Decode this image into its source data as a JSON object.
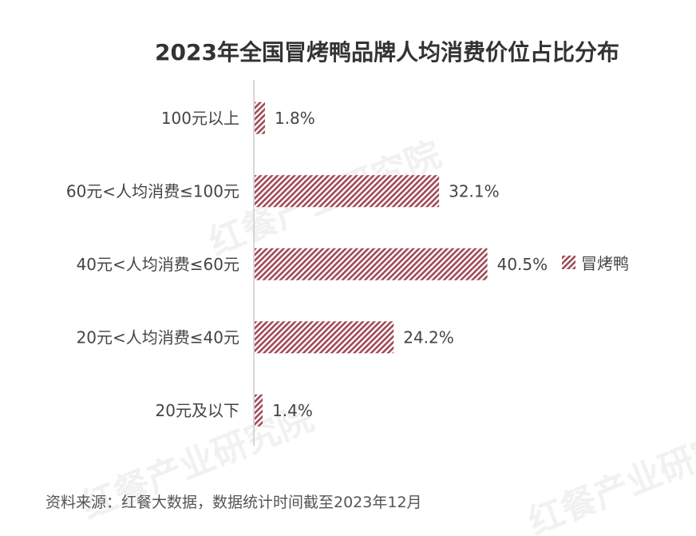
{
  "chart_data": {
    "type": "bar",
    "orientation": "horizontal",
    "title": "2023年全国冒烤鸭品牌人均消费价位占比分布",
    "categories": [
      "100元以上",
      "60元<人均消费≤100元",
      "40元<人均消费≤60元",
      "20元<人均消费≤40元",
      "20元及以下"
    ],
    "series": [
      {
        "name": "冒烤鸭",
        "values": [
          1.8,
          32.1,
          40.5,
          24.2,
          1.4
        ],
        "labels": [
          "1.8%",
          "32.1%",
          "40.5%",
          "24.2%",
          "1.4%"
        ]
      }
    ],
    "xlim": [
      0,
      75
    ],
    "value_unit": "%",
    "grid": false,
    "legend_position": "right"
  },
  "colors": {
    "bar_stripe": "#a04a57",
    "bar_bg": "#ffffff",
    "axis": "#cccccc"
  },
  "footer": {
    "source": "资料来源：红餐大数据，数据统计时间截至2023年12月"
  },
  "watermark": {
    "text": "红餐产业研究院"
  }
}
